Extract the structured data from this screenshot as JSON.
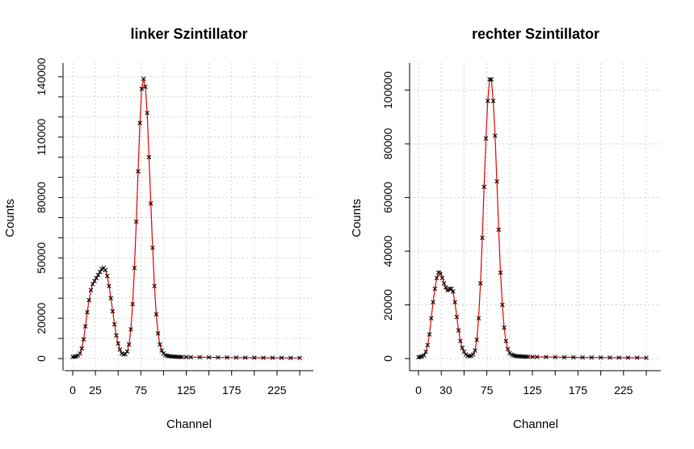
{
  "chart_data": [
    {
      "type": "scatter",
      "title": "linker Szintillator",
      "xlabel": "Channel",
      "ylabel": "Counts",
      "xlim": [
        0,
        250
      ],
      "ylim": [
        0,
        140000
      ],
      "x_ticks": [
        0,
        25,
        75,
        125,
        175,
        225
      ],
      "x_grid": [
        0,
        25,
        50,
        75,
        100,
        125,
        150,
        175,
        200,
        225,
        250
      ],
      "y_ticks": [
        0,
        20000,
        50000,
        80000,
        110000,
        140000
      ],
      "y_grid": [
        0,
        10000,
        20000,
        30000,
        40000,
        50000,
        60000,
        70000,
        80000,
        90000,
        100000,
        110000,
        120000,
        130000,
        140000
      ],
      "grid": true,
      "series": [
        {
          "kind": "points",
          "marker": "x",
          "color": "#000000",
          "x": [
            0,
            2,
            4,
            6,
            8,
            10,
            12,
            14,
            16,
            18,
            20,
            22,
            24,
            26,
            28,
            30,
            32,
            34,
            36,
            38,
            40,
            42,
            44,
            46,
            48,
            50,
            52,
            54,
            56,
            58,
            60,
            62,
            64,
            66,
            68,
            70,
            72,
            74,
            76,
            78,
            80,
            82,
            84,
            86,
            88,
            90,
            92,
            94,
            96,
            98,
            100,
            102,
            104,
            106,
            108,
            110,
            112,
            114,
            116,
            118,
            120,
            125,
            130,
            140,
            150,
            160,
            170,
            180,
            190,
            200,
            210,
            220,
            230,
            240,
            250
          ],
          "y": [
            800,
            900,
            1100,
            1500,
            2500,
            5000,
            9500,
            16000,
            23000,
            29000,
            34000,
            37000,
            38500,
            40000,
            41500,
            43000,
            44500,
            45000,
            44000,
            41000,
            36000,
            30000,
            23500,
            17000,
            11500,
            7500,
            4500,
            2500,
            2000,
            2200,
            3500,
            7000,
            14500,
            27000,
            45000,
            68000,
            93000,
            117000,
            134000,
            139000,
            135000,
            122000,
            100000,
            77000,
            55000,
            36000,
            22000,
            12500,
            7000,
            4000,
            2500,
            1700,
            1400,
            1200,
            1100,
            1000,
            950,
            900,
            850,
            800,
            780,
            720,
            680,
            650,
            600,
            560,
            520,
            480,
            450,
            420,
            400,
            380,
            360,
            340,
            320
          ]
        },
        {
          "kind": "fit",
          "color": "#e00000",
          "x": [
            0,
            2,
            4,
            6,
            8,
            10,
            12,
            14,
            16,
            18,
            20,
            22,
            24,
            26,
            28,
            30,
            32,
            34,
            36,
            38,
            40,
            42,
            44,
            46,
            48,
            50,
            52,
            54,
            56,
            58,
            60,
            62,
            64,
            66,
            68,
            70,
            72,
            74,
            76,
            78,
            80,
            82,
            84,
            86,
            88,
            90,
            92,
            94,
            96,
            98,
            100,
            102,
            104,
            106,
            108,
            110,
            112,
            114,
            116,
            118,
            120,
            125,
            130,
            140,
            150,
            160,
            170,
            180,
            190,
            200,
            210,
            220,
            230,
            240,
            250
          ],
          "y": [
            800,
            900,
            1100,
            1500,
            2500,
            5000,
            9500,
            16000,
            23000,
            29000,
            34000,
            37000,
            38500,
            40000,
            41500,
            43000,
            44500,
            45000,
            44000,
            41000,
            36000,
            30000,
            23500,
            17000,
            11500,
            7500,
            4500,
            2500,
            2000,
            2200,
            3500,
            7000,
            14500,
            27000,
            45000,
            68000,
            93000,
            117000,
            134000,
            139000,
            135000,
            122000,
            100000,
            77000,
            55000,
            36000,
            22000,
            12500,
            7000,
            4000,
            2500,
            1700,
            1400,
            1200,
            1100,
            1000,
            950,
            900,
            850,
            800,
            780,
            720,
            680,
            650,
            600,
            560,
            520,
            480,
            450,
            420,
            400,
            380,
            360,
            340,
            320
          ]
        }
      ]
    },
    {
      "type": "scatter",
      "title": "rechter Szintillator",
      "xlabel": "Channel",
      "ylabel": "Counts",
      "xlim": [
        0,
        250
      ],
      "ylim": [
        0,
        105000
      ],
      "x_ticks": [
        0,
        30,
        75,
        125,
        175,
        225
      ],
      "x_grid": [
        0,
        25,
        50,
        75,
        100,
        125,
        150,
        175,
        200,
        225,
        250
      ],
      "y_ticks": [
        0,
        20000,
        40000,
        60000,
        80000,
        100000
      ],
      "y_grid": [
        0,
        20000,
        40000,
        60000,
        80000,
        100000
      ],
      "grid": true,
      "series": [
        {
          "kind": "points",
          "marker": "x",
          "color": "#000000",
          "x": [
            0,
            2,
            4,
            6,
            8,
            10,
            12,
            14,
            16,
            18,
            20,
            22,
            24,
            26,
            28,
            30,
            32,
            34,
            36,
            38,
            40,
            42,
            44,
            46,
            48,
            50,
            52,
            54,
            56,
            58,
            60,
            62,
            64,
            66,
            68,
            70,
            72,
            74,
            76,
            78,
            80,
            82,
            84,
            86,
            88,
            90,
            92,
            94,
            96,
            98,
            100,
            102,
            104,
            106,
            108,
            110,
            112,
            114,
            116,
            118,
            120,
            125,
            130,
            140,
            150,
            160,
            170,
            180,
            190,
            200,
            210,
            220,
            230,
            240,
            250
          ],
          "y": [
            500,
            600,
            800,
            1200,
            2500,
            5000,
            9000,
            15000,
            21000,
            26000,
            30000,
            32000,
            31500,
            30000,
            28000,
            26500,
            25500,
            26000,
            26000,
            25000,
            21000,
            15500,
            10500,
            6500,
            4000,
            2500,
            1500,
            1000,
            900,
            1000,
            1500,
            3000,
            7000,
            15000,
            28000,
            45000,
            64000,
            82000,
            96000,
            104000,
            104000,
            96000,
            83000,
            66000,
            48000,
            32000,
            20000,
            11500,
            6500,
            3500,
            2000,
            1500,
            1200,
            1000,
            900,
            850,
            800,
            760,
            720,
            700,
            680,
            640,
            600,
            560,
            520,
            480,
            450,
            420,
            400,
            380,
            360,
            340,
            320,
            300,
            280
          ]
        },
        {
          "kind": "fit",
          "color": "#e00000",
          "x": [
            0,
            2,
            4,
            6,
            8,
            10,
            12,
            14,
            16,
            18,
            20,
            22,
            24,
            26,
            28,
            30,
            32,
            34,
            36,
            38,
            40,
            42,
            44,
            46,
            48,
            50,
            52,
            54,
            56,
            58,
            60,
            62,
            64,
            66,
            68,
            70,
            72,
            74,
            76,
            78,
            80,
            82,
            84,
            86,
            88,
            90,
            92,
            94,
            96,
            98,
            100,
            102,
            104,
            106,
            108,
            110,
            112,
            114,
            116,
            118,
            120,
            125,
            130,
            140,
            150,
            160,
            170,
            180,
            190,
            200,
            210,
            220,
            230,
            240,
            250
          ],
          "y": [
            500,
            600,
            800,
            1200,
            2500,
            5000,
            9000,
            15000,
            21000,
            26000,
            30000,
            32500,
            32500,
            30500,
            28000,
            26000,
            25000,
            25500,
            25500,
            24500,
            21000,
            15500,
            10500,
            6500,
            4000,
            2500,
            1500,
            1000,
            900,
            1000,
            1500,
            3000,
            7000,
            15000,
            28000,
            45000,
            64000,
            82000,
            96000,
            104000,
            104000,
            96000,
            83000,
            66000,
            48000,
            32000,
            20000,
            11500,
            6500,
            3500,
            2000,
            1500,
            1200,
            1000,
            900,
            850,
            800,
            760,
            720,
            700,
            680,
            640,
            600,
            560,
            520,
            480,
            450,
            420,
            400,
            380,
            360,
            340,
            320,
            300,
            280
          ]
        }
      ]
    }
  ]
}
